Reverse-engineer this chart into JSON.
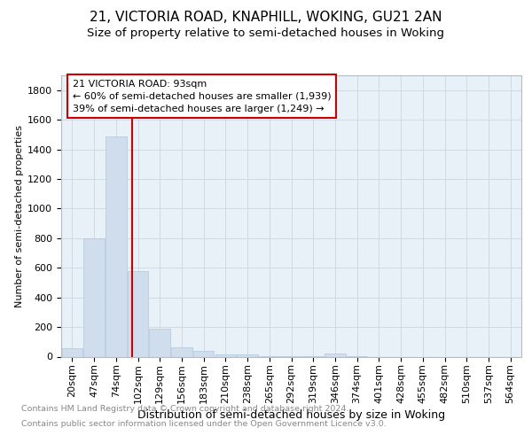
{
  "title": "21, VICTORIA ROAD, KNAPHILL, WOKING, GU21 2AN",
  "subtitle": "Size of property relative to semi-detached houses in Woking",
  "xlabel": "Distribution of semi-detached houses by size in Woking",
  "ylabel": "Number of semi-detached properties",
  "footer_line1": "Contains HM Land Registry data © Crown copyright and database right 2024.",
  "footer_line2": "Contains public sector information licensed under the Open Government Licence v3.0.",
  "bar_labels": [
    "20sqm",
    "47sqm",
    "74sqm",
    "102sqm",
    "129sqm",
    "156sqm",
    "183sqm",
    "210sqm",
    "238sqm",
    "265sqm",
    "292sqm",
    "319sqm",
    "346sqm",
    "374sqm",
    "401sqm",
    "428sqm",
    "455sqm",
    "482sqm",
    "510sqm",
    "537sqm",
    "564sqm"
  ],
  "bar_values": [
    57,
    800,
    1490,
    580,
    190,
    65,
    40,
    15,
    15,
    2,
    2,
    2,
    20,
    2,
    0,
    0,
    0,
    0,
    0,
    0,
    0
  ],
  "bar_color": "#cfdded",
  "bar_edge_color": "#b0c8dc",
  "vline_color": "#cc0000",
  "vline_x_index": 2.73,
  "annotation_line1": "21 VICTORIA ROAD: 93sqm",
  "annotation_line2": "← 60% of semi-detached houses are smaller (1,939)",
  "annotation_line3": "39% of semi-detached houses are larger (1,249) →",
  "annotation_box_color": "#ffffff",
  "annotation_box_edge_color": "#cc0000",
  "ylim": [
    0,
    1900
  ],
  "yticks": [
    0,
    200,
    400,
    600,
    800,
    1000,
    1200,
    1400,
    1600,
    1800
  ],
  "grid_color": "#d0dae4",
  "bg_color": "#e8f0f8",
  "fig_bg_color": "#ffffff",
  "title_fontsize": 11,
  "subtitle_fontsize": 9.5,
  "xlabel_fontsize": 9,
  "ylabel_fontsize": 8,
  "tick_fontsize": 8,
  "footer_fontsize": 6.8,
  "footer_color": "#888888"
}
